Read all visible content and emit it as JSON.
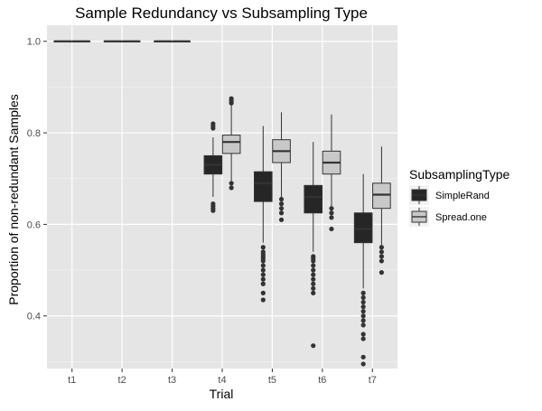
{
  "chart_data": {
    "type": "boxplot",
    "title": "Sample Redundancy vs Subsampling Type",
    "xlabel": "Trial",
    "ylabel": "Proportion of non-redundant Samples",
    "categories": [
      "t1",
      "t2",
      "t3",
      "t4",
      "t5",
      "t6",
      "t7"
    ],
    "y_ticks": [
      "0.4",
      "0.6",
      "0.8",
      "1.0"
    ],
    "ylim": [
      0.285,
      1.035
    ],
    "grid": true,
    "panel_background": "#e5e5e5",
    "legend": {
      "title": "SubsamplingType",
      "position": "right"
    },
    "series": [
      {
        "name": "SimpleRand",
        "fill": "#262626",
        "boxes": [
          {
            "category": "t1",
            "whisker_low": 1.0,
            "q1": 1.0,
            "median": 1.0,
            "q3": 1.0,
            "whisker_high": 1.0,
            "outliers": []
          },
          {
            "category": "t2",
            "whisker_low": 1.0,
            "q1": 1.0,
            "median": 1.0,
            "q3": 1.0,
            "whisker_high": 1.0,
            "outliers": []
          },
          {
            "category": "t3",
            "whisker_low": 1.0,
            "q1": 1.0,
            "median": 1.0,
            "q3": 1.0,
            "whisker_high": 1.0,
            "outliers": []
          },
          {
            "category": "t4",
            "whisker_low": 0.66,
            "q1": 0.71,
            "median": 0.73,
            "q3": 0.75,
            "whisker_high": 0.79,
            "outliers": [
              0.82,
              0.815,
              0.81,
              0.645,
              0.64,
              0.635,
              0.63
            ]
          },
          {
            "category": "t5",
            "whisker_low": 0.56,
            "q1": 0.65,
            "median": 0.69,
            "q3": 0.715,
            "whisker_high": 0.815,
            "outliers": [
              0.55,
              0.54,
              0.535,
              0.53,
              0.525,
              0.52,
              0.51,
              0.5,
              0.49,
              0.48,
              0.47,
              0.45,
              0.435
            ]
          },
          {
            "category": "t6",
            "whisker_low": 0.54,
            "q1": 0.625,
            "median": 0.66,
            "q3": 0.685,
            "whisker_high": 0.78,
            "outliers": [
              0.53,
              0.525,
              0.52,
              0.51,
              0.5,
              0.49,
              0.48,
              0.47,
              0.46,
              0.45,
              0.335
            ]
          },
          {
            "category": "t7",
            "whisker_low": 0.46,
            "q1": 0.56,
            "median": 0.59,
            "q3": 0.625,
            "whisker_high": 0.71,
            "outliers": [
              0.45,
              0.44,
              0.43,
              0.42,
              0.41,
              0.4,
              0.39,
              0.38,
              0.36,
              0.35,
              0.31,
              0.295
            ]
          }
        ]
      },
      {
        "name": "Spread.one",
        "fill": "#c8c8c8",
        "boxes": [
          {
            "category": "t1",
            "whisker_low": 1.0,
            "q1": 1.0,
            "median": 1.0,
            "q3": 1.0,
            "whisker_high": 1.0,
            "outliers": []
          },
          {
            "category": "t2",
            "whisker_low": 1.0,
            "q1": 1.0,
            "median": 1.0,
            "q3": 1.0,
            "whisker_high": 1.0,
            "outliers": []
          },
          {
            "category": "t3",
            "whisker_low": 1.0,
            "q1": 1.0,
            "median": 1.0,
            "q3": 1.0,
            "whisker_high": 1.0,
            "outliers": []
          },
          {
            "category": "t4",
            "whisker_low": 0.695,
            "q1": 0.755,
            "median": 0.78,
            "q3": 0.795,
            "whisker_high": 0.865,
            "outliers": [
              0.875,
              0.87,
              0.865,
              0.69,
              0.68
            ]
          },
          {
            "category": "t5",
            "whisker_low": 0.66,
            "q1": 0.735,
            "median": 0.76,
            "q3": 0.785,
            "whisker_high": 0.845,
            "outliers": [
              0.655,
              0.645,
              0.635,
              0.625,
              0.61
            ]
          },
          {
            "category": "t6",
            "whisker_low": 0.64,
            "q1": 0.71,
            "median": 0.735,
            "q3": 0.76,
            "whisker_high": 0.84,
            "outliers": [
              0.635,
              0.625,
              0.615,
              0.59
            ]
          },
          {
            "category": "t7",
            "whisker_low": 0.555,
            "q1": 0.635,
            "median": 0.665,
            "q3": 0.69,
            "whisker_high": 0.77,
            "outliers": [
              0.55,
              0.54,
              0.53,
              0.52,
              0.495
            ]
          }
        ]
      }
    ]
  }
}
